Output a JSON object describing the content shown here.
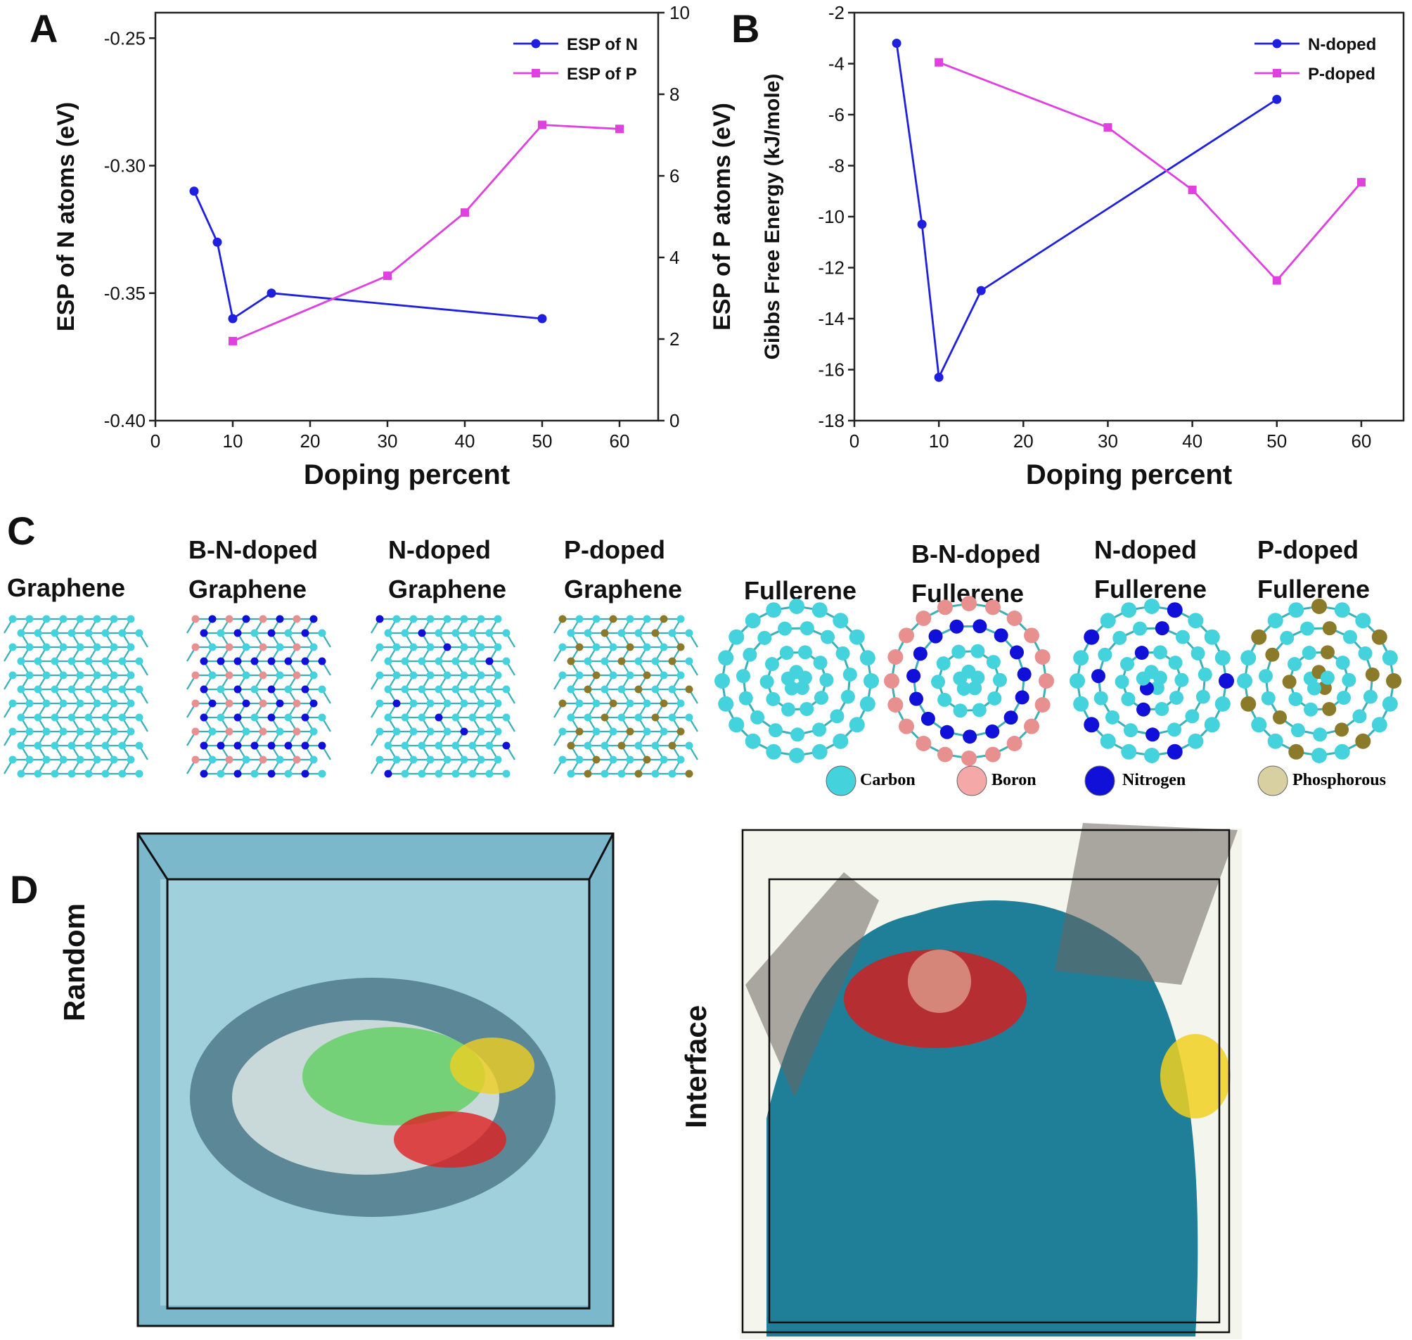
{
  "panels": {
    "a": "A",
    "b": "B",
    "c": "C",
    "d": "D"
  },
  "chart_data": [
    {
      "type": "line",
      "panel": "A",
      "xlabel": "Doping percent",
      "ylabel": "ESP of N atoms (eV)",
      "y2label": "ESP of P atoms (eV)",
      "xlim": [
        0,
        65
      ],
      "xticks": [
        0,
        10,
        20,
        30,
        40,
        50,
        60
      ],
      "ylim": [
        -0.4,
        -0.24
      ],
      "yticks": [
        -0.4,
        -0.35,
        -0.3,
        -0.25
      ],
      "ytick_labels": [
        "-0.40",
        "-0.35",
        "-0.30",
        "-0.25"
      ],
      "y2lim": [
        0,
        10
      ],
      "y2ticks": [
        0,
        2,
        4,
        6,
        8,
        10
      ],
      "legend_position": "top-right",
      "series": [
        {
          "name": "ESP of N",
          "axis": "left",
          "color": "#1f1fe0",
          "marker": "circle",
          "x": [
            5,
            8,
            10,
            15,
            50
          ],
          "y": [
            -0.31,
            -0.33,
            -0.36,
            -0.35,
            -0.36
          ]
        },
        {
          "name": "ESP of P",
          "axis": "right",
          "color": "#e040e0",
          "marker": "square",
          "x": [
            10,
            30,
            40,
            50,
            60
          ],
          "y": [
            1.95,
            3.55,
            5.1,
            7.25,
            7.15
          ]
        }
      ]
    },
    {
      "type": "line",
      "panel": "B",
      "xlabel": "Doping percent",
      "ylabel": "Gibbs Free Energy (kJ/mole)",
      "xlim": [
        0,
        65
      ],
      "xticks": [
        0,
        10,
        20,
        30,
        40,
        50,
        60
      ],
      "ylim": [
        -18,
        -2
      ],
      "yticks": [
        -18,
        -16,
        -14,
        -12,
        -10,
        -8,
        -6,
        -4,
        -2
      ],
      "legend_position": "top-right",
      "series": [
        {
          "name": "N-doped",
          "color": "#1f1fe0",
          "marker": "circle",
          "x": [
            5,
            8,
            10,
            15,
            50
          ],
          "y": [
            -3.2,
            -10.3,
            -16.3,
            -12.9,
            -5.4
          ]
        },
        {
          "name": "P-doped",
          "color": "#e040e0",
          "marker": "square",
          "x": [
            10,
            30,
            40,
            50,
            60
          ],
          "y": [
            -3.95,
            -6.5,
            -8.95,
            -12.5,
            -8.65
          ]
        }
      ]
    }
  ],
  "structures": {
    "items": [
      {
        "name": "Graphene"
      },
      {
        "name": "B-N-doped\nGraphene"
      },
      {
        "name": "N-doped\nGraphene"
      },
      {
        "name": "P-doped\nGraphene"
      },
      {
        "name": "Fullerene"
      },
      {
        "name": "B-N-doped\nFullerene"
      },
      {
        "name": "N-doped\nFullerene"
      },
      {
        "name": "P-doped\nFullerene"
      }
    ],
    "legend": [
      {
        "label": "Carbon",
        "color": "#4fc8cc"
      },
      {
        "label": "Boron",
        "color": "#f0a0a0"
      },
      {
        "label": "Nitrogen",
        "color": "#1a1ad0"
      },
      {
        "label": "Phosphorous",
        "color": "#c8c090"
      }
    ]
  },
  "simulations": {
    "left_label": "Random",
    "right_label": "Interface"
  },
  "colors": {
    "carbon": "#44d2dc",
    "boron": "#e89090",
    "nitrogen": "#1010d8",
    "phosphorus": "#8a7a2a",
    "water": "#2a8fa8"
  }
}
